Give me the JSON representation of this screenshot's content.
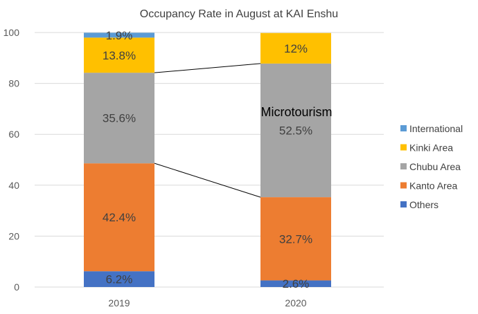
{
  "chart_data": {
    "type": "stacked-bar",
    "title": "Occupancy Rate in August at KAI Enshu",
    "xlabel": "",
    "ylabel": "",
    "ylim": [
      0,
      100
    ],
    "yticks": [
      0,
      20,
      40,
      60,
      80,
      100
    ],
    "categories": [
      "2019",
      "2020"
    ],
    "series": [
      {
        "name": "Others",
        "color": "#4472C4",
        "values": [
          6.2,
          2.6
        ],
        "labels": [
          "6.2%",
          "2.6%"
        ]
      },
      {
        "name": "Kanto Area",
        "color": "#ED7D31",
        "values": [
          42.4,
          32.7
        ],
        "labels": [
          "42.4%",
          "32.7%"
        ]
      },
      {
        "name": "Chubu Area",
        "color": "#A5A5A5",
        "values": [
          35.6,
          52.5
        ],
        "labels": [
          "35.6%",
          "52.5%"
        ]
      },
      {
        "name": "Kinki Area",
        "color": "#FFC000",
        "values": [
          13.8,
          12
        ],
        "labels": [
          "13.8%",
          "12%"
        ]
      },
      {
        "name": "International",
        "color": "#5B9BD5",
        "values": [
          1.9,
          0
        ],
        "labels": [
          "1.9%",
          ""
        ]
      }
    ],
    "legend": [
      "International",
      "Kinki Area",
      "Chubu Area",
      "Kanto Area",
      "Others"
    ],
    "annotation": "Microtourism",
    "grid": true
  }
}
